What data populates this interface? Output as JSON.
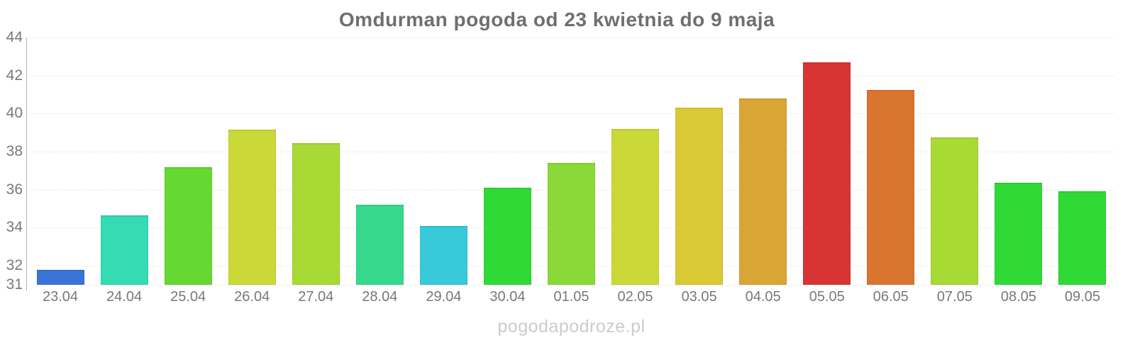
{
  "title": "Omdurman pogoda od 23 kwietnia do 9 maja",
  "watermark": "pogodapodroze.pl",
  "chart_data": {
    "type": "bar",
    "title": "Omdurman pogoda od 23 kwietnia do 9 maja",
    "categories": [
      "23.04",
      "24.04",
      "25.04",
      "26.04",
      "27.04",
      "28.04",
      "29.04",
      "30.04",
      "01.05",
      "02.05",
      "03.05",
      "04.05",
      "05.05",
      "06.05",
      "07.05",
      "08.05",
      "09.05"
    ],
    "values": [
      31.8,
      34.65,
      37.2,
      39.15,
      38.45,
      35.2,
      34.1,
      36.1,
      37.4,
      39.2,
      40.3,
      40.8,
      42.7,
      41.25,
      38.75,
      36.35,
      35.9
    ],
    "bar_colors": [
      "#3b74d8",
      "#35dbb2",
      "#66d832",
      "#cbd938",
      "#a8da35",
      "#36d98c",
      "#38cad9",
      "#2fd936",
      "#8ad938",
      "#cbd938",
      "#d9c935",
      "#d9a635",
      "#d93434",
      "#d9752f",
      "#a8da35",
      "#2fd936",
      "#2fd936"
    ],
    "xlabel": "",
    "ylabel": "",
    "ylim": [
      31,
      44
    ],
    "yticks": [
      44,
      42,
      40,
      38,
      36,
      34,
      32,
      31
    ],
    "grid": true,
    "legend": false
  },
  "style": {
    "title_color": "#6f6f6f",
    "tick_label_color": "#787878",
    "gridline_color": "#e4e4e4",
    "axis_line_color": "#b8b8b8",
    "watermark_color": "#cccccc",
    "background": "#ffffff"
  }
}
